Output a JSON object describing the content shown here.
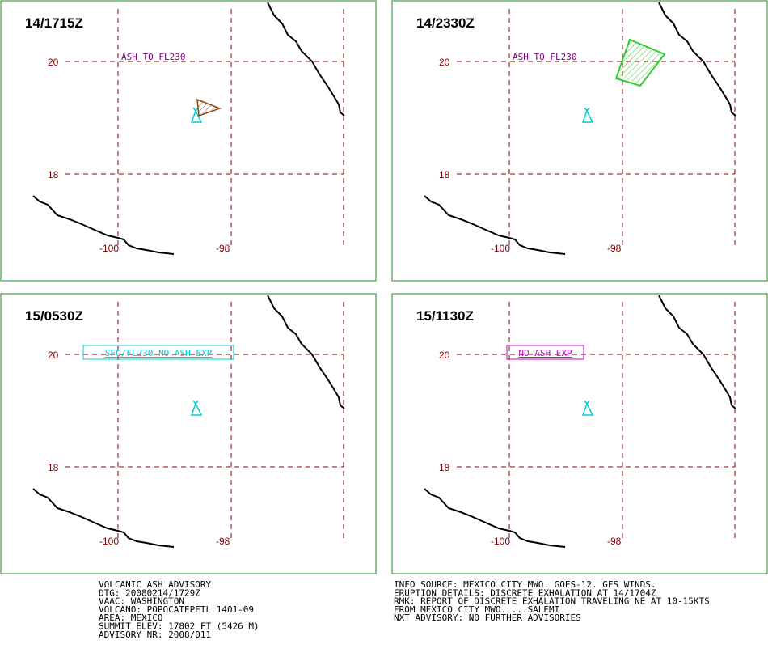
{
  "panels": [
    {
      "time": "14/1715Z",
      "lat_labels": [
        "20",
        "18"
      ],
      "lon_labels": [
        "-100",
        "-98"
      ],
      "annotation": "ASH TO FL230"
    },
    {
      "time": "14/2330Z",
      "lat_labels": [
        "20",
        "18"
      ],
      "lon_labels": [
        "-100",
        "-98"
      ],
      "annotation": "ASH TO FL230"
    },
    {
      "time": "15/0530Z",
      "lat_labels": [
        "20",
        "18"
      ],
      "lon_labels": [
        "-100",
        "-98"
      ],
      "annotation": "SFC/FL230 NO ASH EXP"
    },
    {
      "time": "15/1130Z",
      "lat_labels": [
        "20",
        "18"
      ],
      "lon_labels": [
        "-100",
        "-98"
      ],
      "annotation": "NO ASH EXP"
    }
  ],
  "advisory_left": [
    "VOLCANIC ASH ADVISORY",
    "DTG: 20080214/1729Z",
    "VAAC: WASHINGTON",
    "VOLCANO: POPOCATEPETL 1401-09",
    "AREA: MEXICO",
    "SUMMIT ELEV: 17802 FT (5426 M)",
    "ADVISORY NR: 2008/011"
  ],
  "advisory_right": [
    "INFO SOURCE: MEXICO CITY MWO. GOES-12. GFS WINDS.",
    "ERUPTION DETAILS: DISCRETE EXHALATION AT 14/1704Z",
    "RMK: REPORT OF DISCRETE EXHALATION TRAVELING NE AT 10-15KTS",
    "FROM MEXICO CITY MWO. ...SALEMI",
    "NXT ADVISORY: NO FURTHER ADVISORIES"
  ]
}
